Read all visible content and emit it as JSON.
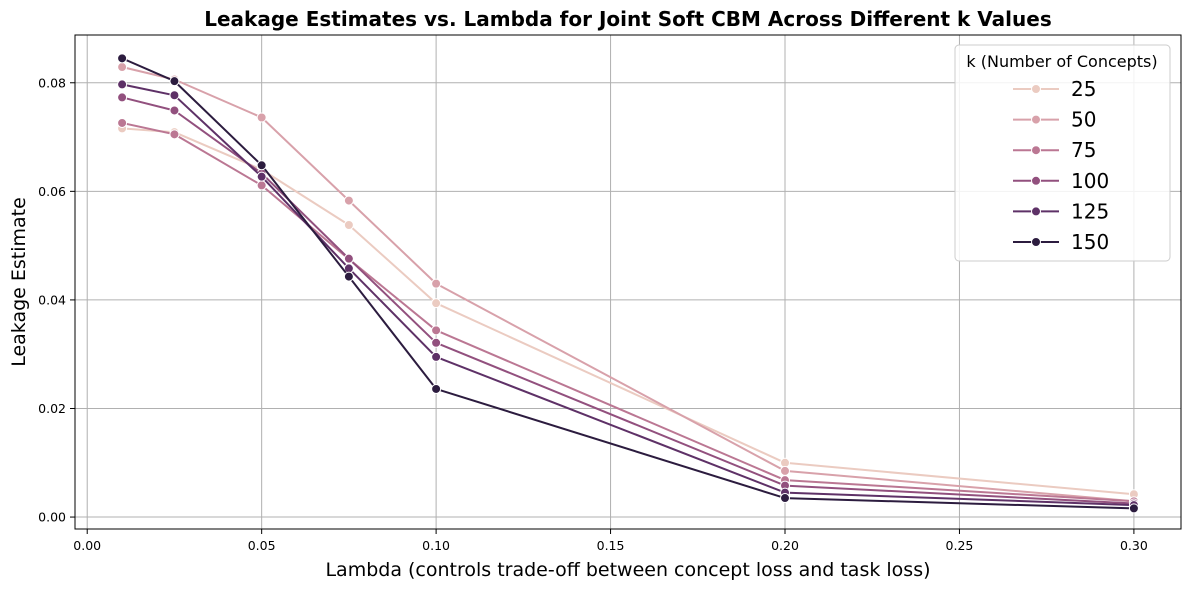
{
  "chart_data": {
    "type": "line",
    "title": "Leakage Estimates vs. Lambda for Joint Soft CBM Across Different k Values",
    "xlabel": "Lambda (controls trade-off between concept loss and task loss)",
    "ylabel": "Leakage Estimate",
    "xlim": [
      -0.0035,
      0.3135
    ],
    "ylim": [
      -0.0022,
      0.0888
    ],
    "xticks": [
      0.0,
      0.05,
      0.1,
      0.15,
      0.2,
      0.25,
      0.3
    ],
    "xtick_labels": [
      "0.00",
      "0.05",
      "0.10",
      "0.15",
      "0.20",
      "0.25",
      "0.30"
    ],
    "yticks": [
      0.0,
      0.02,
      0.04,
      0.06,
      0.08
    ],
    "ytick_labels": [
      "0.00",
      "0.02",
      "0.04",
      "0.06",
      "0.08"
    ],
    "grid": true,
    "legend": {
      "title": "k (Number of Concepts)",
      "position": "top-right"
    },
    "x": [
      0.01,
      0.025,
      0.05,
      0.075,
      0.1,
      0.2,
      0.3
    ],
    "series": [
      {
        "name": "25",
        "color": "#ebcbc1",
        "values": [
          0.0716,
          0.0709,
          0.064,
          0.0538,
          0.0394,
          0.01,
          0.0042
        ]
      },
      {
        "name": "50",
        "color": "#d8a1aa",
        "values": [
          0.0829,
          0.0806,
          0.0736,
          0.0583,
          0.043,
          0.0085,
          0.0029
        ]
      },
      {
        "name": "75",
        "color": "#bb7793",
        "values": [
          0.0726,
          0.0705,
          0.0611,
          0.0475,
          0.0344,
          0.0068,
          0.0029
        ]
      },
      {
        "name": "100",
        "color": "#92507e",
        "values": [
          0.0773,
          0.0749,
          0.0633,
          0.0476,
          0.0321,
          0.0058,
          0.0025
        ]
      },
      {
        "name": "125",
        "color": "#5e3167",
        "values": [
          0.0797,
          0.0777,
          0.0627,
          0.0458,
          0.0295,
          0.0045,
          0.0022
        ]
      },
      {
        "name": "150",
        "color": "#2c1c3f",
        "values": [
          0.0845,
          0.0803,
          0.0648,
          0.0443,
          0.0236,
          0.0035,
          0.0016
        ]
      }
    ]
  }
}
